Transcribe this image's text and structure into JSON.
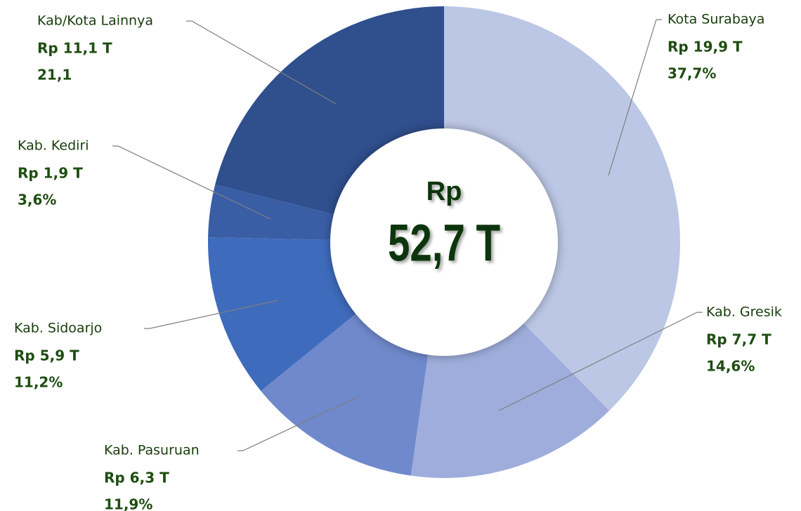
{
  "chart_data": {
    "type": "donut",
    "center_labels": [
      "Rp",
      "52,7 T"
    ],
    "categories": [
      "Kota Surabaya",
      "Kab. Gresik",
      "Kab. Pasuruan",
      "Kab. Sidoarjo",
      "Kab. Kediri",
      "Kab/Kota Lainnya"
    ],
    "values": [
      37.7,
      14.6,
      11.9,
      11.2,
      3.6,
      21.1
    ],
    "value_labels": [
      "37,7%",
      "14,6%",
      "11,9%",
      "11,2%",
      "3,6%",
      "21,1"
    ],
    "amount_labels": [
      "Rp 19,9 T",
      "Rp 7,7 T",
      "Rp 6,3 T",
      "Rp 5,9 T",
      "Rp 1,9 T",
      "Rp 11,1 T"
    ],
    "colors": [
      "#bcc7e5",
      "#9eaddb",
      "#6f89cc",
      "#3f6bbd",
      "#3a5ea6",
      "#2f4f8d"
    ]
  }
}
